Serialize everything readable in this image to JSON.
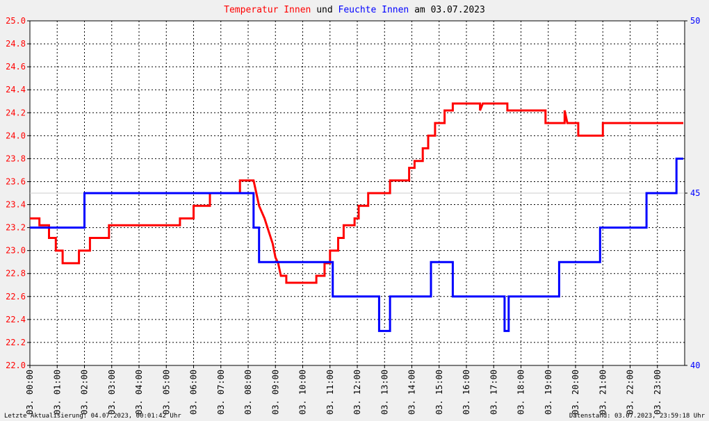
{
  "title": {
    "part1": "Temperatur Innen",
    "part2": "und",
    "part3": "Feuchte Innen",
    "part4": "am 03.07.2023"
  },
  "footer": {
    "left": "Letzte Aktualisierung: 04.07.2023, 00:01:42 Uhr",
    "right": "Datenstand: 03.07.2023, 23:59:18 Uhr"
  },
  "colors": {
    "temperature": "#ff0000",
    "humidity": "#0000ff",
    "grid": "#000000",
    "background": "#ffffff"
  },
  "chart_data": {
    "type": "line",
    "title": "Temperatur Innen und Feuchte Innen am 03.07.2023",
    "grid": true,
    "x_unit": "hours",
    "xlim": [
      0,
      24
    ],
    "x_tick_labels": [
      "03. 00:00",
      "03. 01:00",
      "03. 02:00",
      "03. 03:00",
      "03. 04:00",
      "03. 05:00",
      "03. 06:00",
      "03. 07:00",
      "03. 08:00",
      "03. 09:00",
      "03. 10:00",
      "03. 11:00",
      "03. 12:00",
      "03. 13:00",
      "03. 14:00",
      "03. 15:00",
      "03. 16:00",
      "03. 17:00",
      "03. 18:00",
      "03. 19:00",
      "03. 20:00",
      "03. 21:00",
      "03. 22:00",
      "03. 23:00"
    ],
    "y_left": {
      "lim": [
        22.0,
        25.0
      ],
      "ticks": [
        "22.0",
        "22.2",
        "22.4",
        "22.6",
        "22.8",
        "23.0",
        "23.2",
        "23.4",
        "23.6",
        "23.8",
        "24.0",
        "24.2",
        "24.4",
        "24.6",
        "24.8",
        "25.0"
      ]
    },
    "y_right": {
      "lim": [
        40,
        50
      ],
      "ticks": [
        "40",
        "45",
        "50"
      ]
    },
    "series": [
      {
        "name": "Temperatur Innen",
        "axis": "left",
        "color": "#ff0000",
        "points": [
          [
            0.0,
            23.28
          ],
          [
            0.35,
            23.28
          ],
          [
            0.35,
            23.22
          ],
          [
            0.7,
            23.22
          ],
          [
            0.7,
            23.11
          ],
          [
            0.95,
            23.11
          ],
          [
            0.95,
            23.0
          ],
          [
            1.2,
            23.0
          ],
          [
            1.2,
            22.89
          ],
          [
            1.8,
            22.89
          ],
          [
            1.8,
            23.0
          ],
          [
            2.2,
            23.0
          ],
          [
            2.2,
            23.11
          ],
          [
            2.9,
            23.11
          ],
          [
            2.9,
            23.22
          ],
          [
            5.5,
            23.22
          ],
          [
            5.5,
            23.28
          ],
          [
            6.0,
            23.28
          ],
          [
            6.0,
            23.39
          ],
          [
            6.6,
            23.39
          ],
          [
            6.6,
            23.5
          ],
          [
            7.7,
            23.5
          ],
          [
            7.7,
            23.61
          ],
          [
            8.2,
            23.61
          ],
          [
            8.3,
            23.5
          ],
          [
            8.4,
            23.39
          ],
          [
            8.6,
            23.28
          ],
          [
            8.75,
            23.17
          ],
          [
            8.9,
            23.06
          ],
          [
            9.0,
            22.94
          ],
          [
            9.1,
            22.89
          ],
          [
            9.2,
            22.78
          ],
          [
            9.4,
            22.78
          ],
          [
            9.4,
            22.72
          ],
          [
            10.5,
            22.72
          ],
          [
            10.5,
            22.78
          ],
          [
            10.8,
            22.78
          ],
          [
            10.8,
            22.89
          ],
          [
            11.0,
            22.89
          ],
          [
            11.0,
            23.0
          ],
          [
            11.3,
            23.0
          ],
          [
            11.3,
            23.11
          ],
          [
            11.5,
            23.11
          ],
          [
            11.5,
            23.22
          ],
          [
            11.9,
            23.22
          ],
          [
            11.9,
            23.28
          ],
          [
            12.05,
            23.28
          ],
          [
            12.05,
            23.39
          ],
          [
            12.4,
            23.39
          ],
          [
            12.4,
            23.5
          ],
          [
            13.2,
            23.5
          ],
          [
            13.2,
            23.61
          ],
          [
            13.9,
            23.61
          ],
          [
            13.9,
            23.72
          ],
          [
            14.1,
            23.72
          ],
          [
            14.1,
            23.78
          ],
          [
            14.4,
            23.78
          ],
          [
            14.4,
            23.89
          ],
          [
            14.6,
            23.89
          ],
          [
            14.6,
            24.0
          ],
          [
            14.85,
            24.0
          ],
          [
            14.85,
            24.11
          ],
          [
            15.2,
            24.11
          ],
          [
            15.2,
            24.22
          ],
          [
            15.5,
            24.22
          ],
          [
            15.5,
            24.28
          ],
          [
            16.5,
            24.28
          ],
          [
            16.5,
            24.22
          ],
          [
            16.6,
            24.28
          ],
          [
            17.5,
            24.28
          ],
          [
            17.5,
            24.22
          ],
          [
            18.9,
            24.22
          ],
          [
            18.9,
            24.11
          ],
          [
            19.6,
            24.11
          ],
          [
            19.6,
            24.22
          ],
          [
            19.7,
            24.11
          ],
          [
            20.1,
            24.11
          ],
          [
            20.1,
            24.0
          ],
          [
            21.0,
            24.0
          ],
          [
            21.0,
            24.11
          ],
          [
            23.95,
            24.11
          ]
        ]
      },
      {
        "name": "Feuchte Innen",
        "axis": "right",
        "color": "#0000ff",
        "points": [
          [
            0.0,
            44.0
          ],
          [
            2.0,
            44.0
          ],
          [
            2.0,
            45.0
          ],
          [
            8.2,
            45.0
          ],
          [
            8.2,
            44.0
          ],
          [
            8.4,
            44.0
          ],
          [
            8.4,
            43.0
          ],
          [
            11.1,
            43.0
          ],
          [
            11.1,
            42.0
          ],
          [
            12.8,
            42.0
          ],
          [
            12.8,
            41.0
          ],
          [
            13.2,
            41.0
          ],
          [
            13.2,
            42.0
          ],
          [
            14.7,
            42.0
          ],
          [
            14.7,
            43.0
          ],
          [
            15.5,
            43.0
          ],
          [
            15.5,
            42.0
          ],
          [
            17.4,
            42.0
          ],
          [
            17.4,
            41.0
          ],
          [
            17.55,
            41.0
          ],
          [
            17.55,
            42.0
          ],
          [
            19.4,
            42.0
          ],
          [
            19.4,
            43.0
          ],
          [
            20.9,
            43.0
          ],
          [
            20.9,
            44.0
          ],
          [
            22.6,
            44.0
          ],
          [
            22.6,
            45.0
          ],
          [
            23.7,
            45.0
          ],
          [
            23.7,
            46.0
          ],
          [
            23.95,
            46.0
          ]
        ]
      }
    ]
  }
}
